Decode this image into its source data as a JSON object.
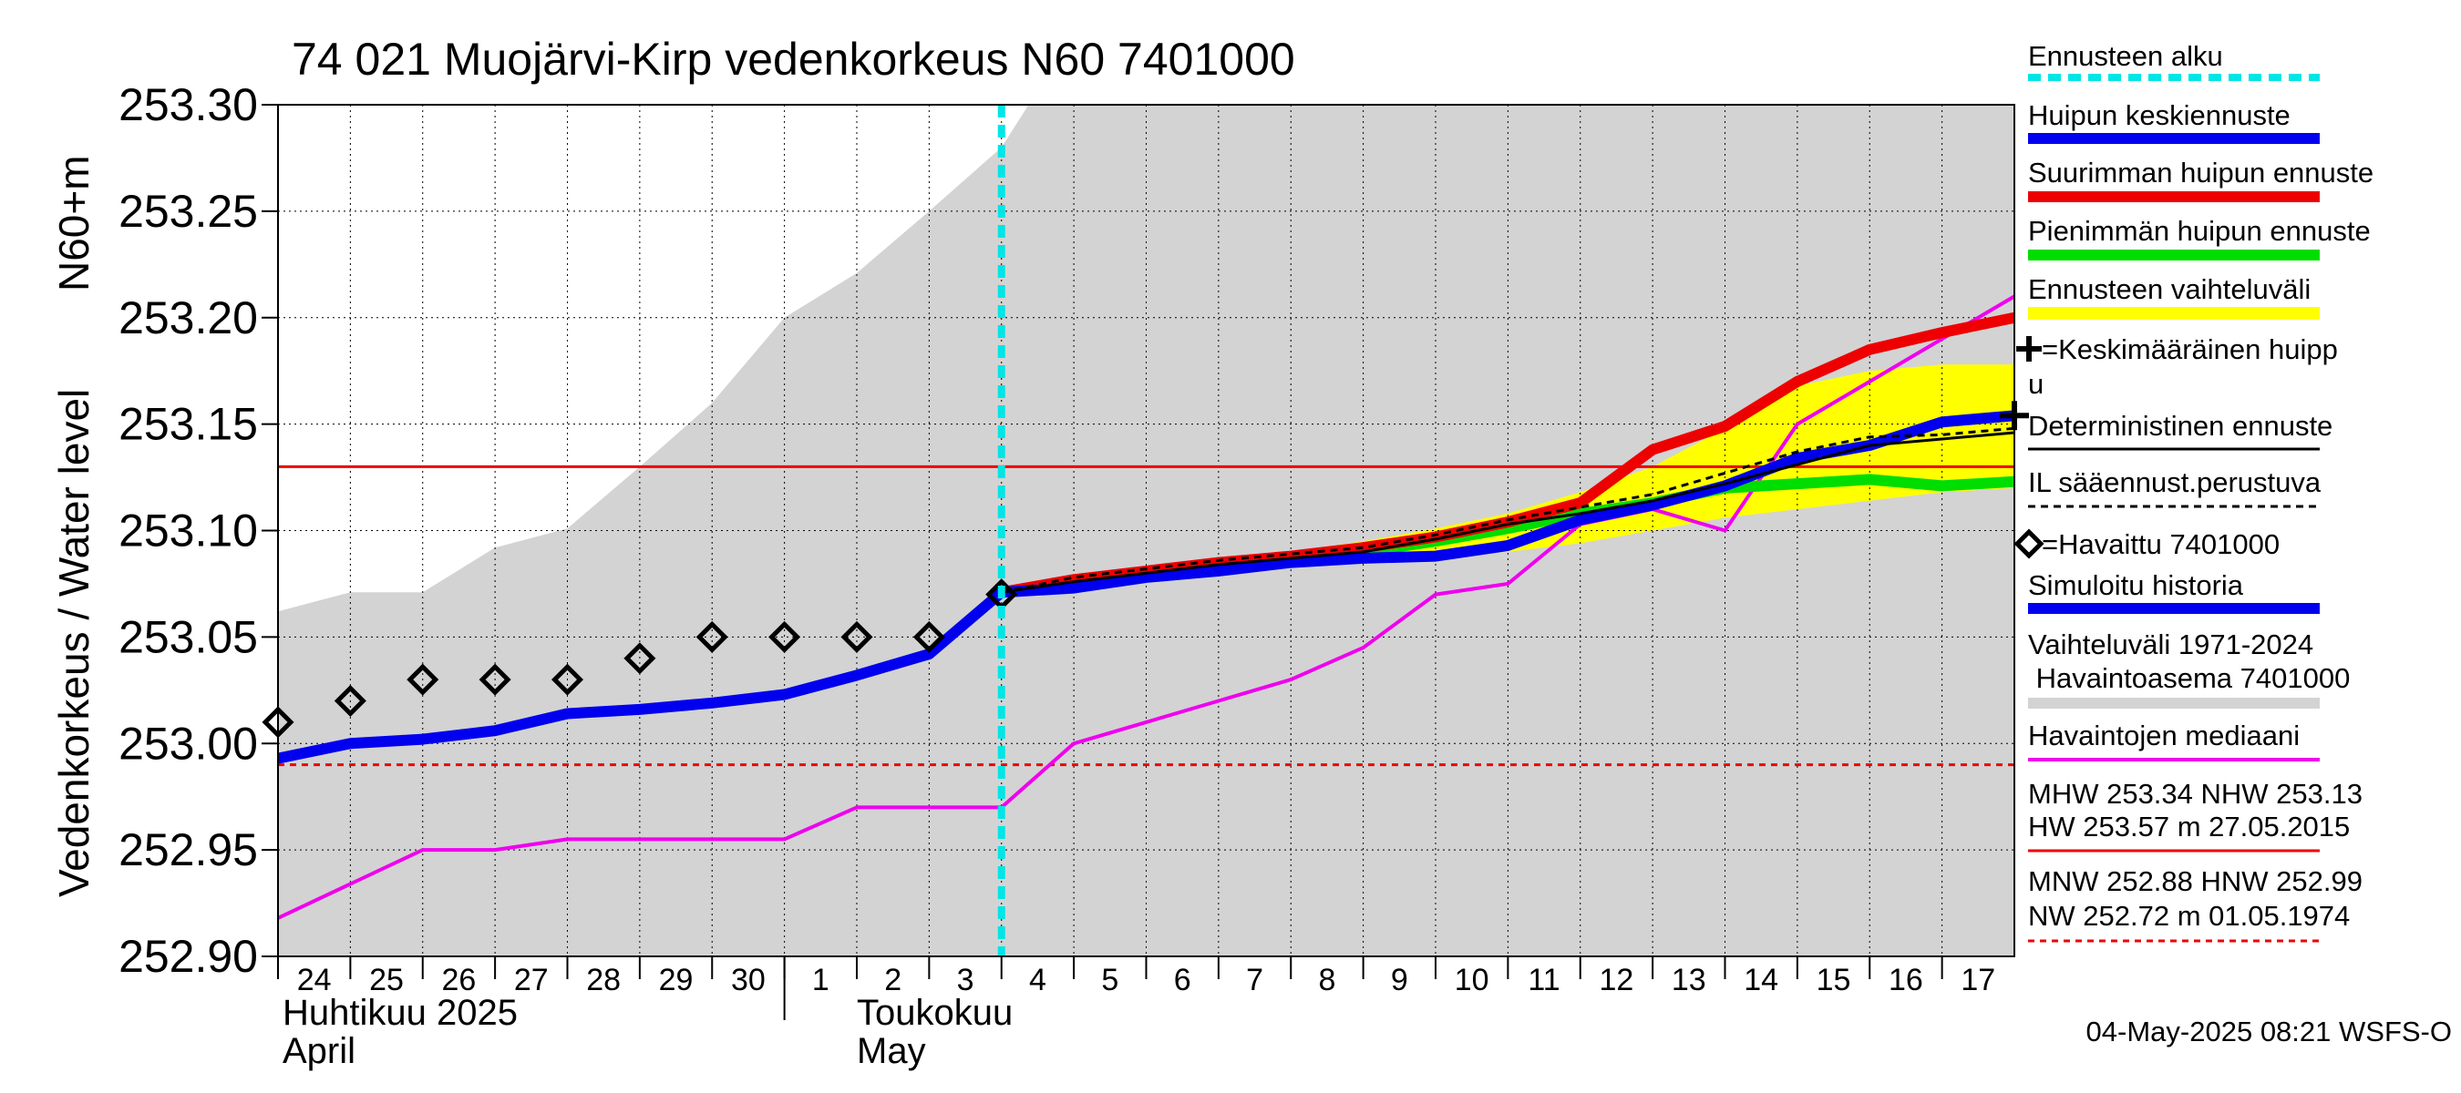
{
  "chart_data": {
    "type": "line",
    "title": "74 021 Muojärvi-Kirp vedenkorkeus N60 7401000",
    "ylabel": "Vedenkorkeus / Water level",
    "yunit": "N60+m",
    "ylim": [
      252.9,
      253.3
    ],
    "yticks": [
      "253.30",
      "253.25",
      "253.20",
      "253.15",
      "253.10",
      "253.05",
      "253.00",
      "252.95",
      "252.90"
    ],
    "x_start": "2025-04-24",
    "x_end": "2025-05-18",
    "x_day_labels": [
      "24",
      "25",
      "26",
      "27",
      "28",
      "29",
      "30",
      "1",
      "2",
      "3",
      "4",
      "5",
      "6",
      "7",
      "8",
      "9",
      "10",
      "11",
      "12",
      "13",
      "14",
      "15",
      "16",
      "17"
    ],
    "month_labels": [
      {
        "line1": "Huhtikuu  2025",
        "line2": "April"
      },
      {
        "line1": "Toukokuu",
        "line2": "May"
      }
    ],
    "forecast_start": "2025-05-04",
    "timestamp": "04-May-2025 08:21 WSFS-O",
    "hist_range_upper": [
      [
        "2025-04-24",
        253.062
      ],
      [
        "2025-04-25",
        253.071
      ],
      [
        "2025-04-26",
        253.071
      ],
      [
        "2025-04-27",
        253.092
      ],
      [
        "2025-04-28",
        253.101
      ],
      [
        "2025-04-29",
        253.13
      ],
      [
        "2025-04-30",
        253.16
      ],
      [
        "2025-05-01",
        253.2
      ],
      [
        "2025-05-02",
        253.221
      ],
      [
        "2025-05-03",
        253.25
      ],
      [
        "2025-05-04",
        253.28
      ],
      [
        "2025-05-04 09:00",
        253.3
      ]
    ],
    "forecast_range_upper": [
      [
        "2025-05-04",
        253.071
      ],
      [
        "2025-05-05",
        253.079
      ],
      [
        "2025-05-06",
        253.082
      ],
      [
        "2025-05-07",
        253.085
      ],
      [
        "2025-05-08",
        253.09
      ],
      [
        "2025-05-09",
        253.095
      ],
      [
        "2025-05-10",
        253.101
      ],
      [
        "2025-05-11",
        253.108
      ],
      [
        "2025-05-12",
        253.118
      ],
      [
        "2025-05-13",
        253.13
      ],
      [
        "2025-05-14",
        253.148
      ],
      [
        "2025-05-15",
        253.168
      ],
      [
        "2025-05-16",
        253.175
      ],
      [
        "2025-05-17",
        253.178
      ],
      [
        "2025-05-18",
        253.178
      ]
    ],
    "forecast_range_lower": [
      [
        "2025-05-04",
        253.071
      ],
      [
        "2025-05-05",
        253.072
      ],
      [
        "2025-05-06",
        253.077
      ],
      [
        "2025-05-07",
        253.081
      ],
      [
        "2025-05-08",
        253.084
      ],
      [
        "2025-05-09",
        253.086
      ],
      [
        "2025-05-10",
        253.088
      ],
      [
        "2025-05-11",
        253.09
      ],
      [
        "2025-05-12",
        253.094
      ],
      [
        "2025-05-13",
        253.1
      ],
      [
        "2025-05-14",
        253.106
      ],
      [
        "2025-05-15",
        253.11
      ],
      [
        "2025-05-16",
        253.114
      ],
      [
        "2025-05-17",
        253.118
      ],
      [
        "2025-05-18",
        253.12
      ]
    ],
    "series": [
      {
        "name": "Simuloitu historia",
        "color": "#0000ee",
        "points": [
          [
            "2025-04-24",
            252.993
          ],
          [
            "2025-04-25",
            253.0
          ],
          [
            "2025-04-26",
            253.002
          ],
          [
            "2025-04-27",
            253.006
          ],
          [
            "2025-04-28",
            253.014
          ],
          [
            "2025-04-29",
            253.016
          ],
          [
            "2025-04-30",
            253.019
          ],
          [
            "2025-05-01",
            253.023
          ],
          [
            "2025-05-02",
            253.032
          ],
          [
            "2025-05-03",
            253.042
          ],
          [
            "2025-05-04",
            253.071
          ]
        ]
      },
      {
        "name": "Havaintojen mediaani",
        "color": "#ee00ee",
        "points": [
          [
            "2025-04-24",
            252.918
          ],
          [
            "2025-04-25",
            252.934
          ],
          [
            "2025-04-26",
            252.95
          ],
          [
            "2025-04-27",
            252.95
          ],
          [
            "2025-04-28",
            252.955
          ],
          [
            "2025-04-29",
            252.955
          ],
          [
            "2025-04-30",
            252.955
          ],
          [
            "2025-05-01",
            252.955
          ],
          [
            "2025-05-02",
            252.97
          ],
          [
            "2025-05-03",
            252.97
          ],
          [
            "2025-05-04",
            252.97
          ],
          [
            "2025-05-05",
            253.0
          ],
          [
            "2025-05-06",
            253.01
          ],
          [
            "2025-05-07",
            253.02
          ],
          [
            "2025-05-08",
            253.03
          ],
          [
            "2025-05-09",
            253.045
          ],
          [
            "2025-05-10",
            253.07
          ],
          [
            "2025-05-11",
            253.075
          ],
          [
            "2025-05-12",
            253.103
          ],
          [
            "2025-05-13",
            253.11
          ],
          [
            "2025-05-14",
            253.1
          ],
          [
            "2025-05-15",
            253.15
          ],
          [
            "2025-05-16",
            253.17
          ],
          [
            "2025-05-17",
            253.19
          ],
          [
            "2025-05-18",
            253.21
          ]
        ]
      },
      {
        "name": "Pienimmän huipun ennuste",
        "color": "#00dd00",
        "points": [
          [
            "2025-05-04",
            253.071
          ],
          [
            "2025-05-05",
            253.075
          ],
          [
            "2025-05-06",
            253.079
          ],
          [
            "2025-05-07",
            253.082
          ],
          [
            "2025-05-08",
            253.086
          ],
          [
            "2025-05-09",
            253.09
          ],
          [
            "2025-05-10",
            253.095
          ],
          [
            "2025-05-11",
            253.101
          ],
          [
            "2025-05-12",
            253.108
          ],
          [
            "2025-05-13",
            253.113
          ],
          [
            "2025-05-14",
            253.12
          ],
          [
            "2025-05-15",
            253.122
          ],
          [
            "2025-05-16",
            253.124
          ],
          [
            "2025-05-17",
            253.121
          ],
          [
            "2025-05-18",
            253.123
          ]
        ]
      },
      {
        "name": "Suurimman huipun ennuste",
        "color": "#ee0000",
        "points": [
          [
            "2025-05-04",
            253.071
          ],
          [
            "2025-05-05",
            253.077
          ],
          [
            "2025-05-06",
            253.081
          ],
          [
            "2025-05-07",
            253.085
          ],
          [
            "2025-05-08",
            253.088
          ],
          [
            "2025-05-09",
            253.092
          ],
          [
            "2025-05-10",
            253.097
          ],
          [
            "2025-05-11",
            253.104
          ],
          [
            "2025-05-12",
            253.113
          ],
          [
            "2025-05-13",
            253.138
          ],
          [
            "2025-05-14",
            253.149
          ],
          [
            "2025-05-15",
            253.17
          ],
          [
            "2025-05-16",
            253.185
          ],
          [
            "2025-05-17",
            253.193
          ],
          [
            "2025-05-18",
            253.2
          ]
        ]
      },
      {
        "name": "Huipun keskiennuste",
        "color": "#0000ee",
        "points": [
          [
            "2025-05-04",
            253.071
          ],
          [
            "2025-05-05",
            253.073
          ],
          [
            "2025-05-06",
            253.078
          ],
          [
            "2025-05-07",
            253.081
          ],
          [
            "2025-05-08",
            253.085
          ],
          [
            "2025-05-09",
            253.087
          ],
          [
            "2025-05-10",
            253.088
          ],
          [
            "2025-05-11",
            253.093
          ],
          [
            "2025-05-12",
            253.105
          ],
          [
            "2025-05-13",
            253.112
          ],
          [
            "2025-05-14",
            253.121
          ],
          [
            "2025-05-15",
            253.134
          ],
          [
            "2025-05-16",
            253.14
          ],
          [
            "2025-05-17",
            253.151
          ],
          [
            "2025-05-18",
            253.154
          ]
        ]
      },
      {
        "name": "Deterministinen ennuste",
        "color": "#000000",
        "points": [
          [
            "2025-05-04",
            253.071
          ],
          [
            "2025-05-05",
            253.076
          ],
          [
            "2025-05-06",
            253.08
          ],
          [
            "2025-05-07",
            253.084
          ],
          [
            "2025-05-08",
            253.087
          ],
          [
            "2025-05-09",
            253.09
          ],
          [
            "2025-05-10",
            253.096
          ],
          [
            "2025-05-11",
            253.103
          ],
          [
            "2025-05-12",
            253.108
          ],
          [
            "2025-05-13",
            253.114
          ],
          [
            "2025-05-14",
            253.122
          ],
          [
            "2025-05-15",
            253.131
          ],
          [
            "2025-05-16",
            253.14
          ],
          [
            "2025-05-17",
            253.143
          ],
          [
            "2025-05-18",
            253.146
          ]
        ]
      },
      {
        "name": "IL sääennust.perustuva",
        "color": "#000000",
        "points": [
          [
            "2025-05-04",
            253.071
          ],
          [
            "2025-05-05",
            253.078
          ],
          [
            "2025-05-06",
            253.082
          ],
          [
            "2025-05-07",
            253.086
          ],
          [
            "2025-05-08",
            253.089
          ],
          [
            "2025-05-09",
            253.092
          ],
          [
            "2025-05-10",
            253.098
          ],
          [
            "2025-05-11",
            253.105
          ],
          [
            "2025-05-12",
            253.111
          ],
          [
            "2025-05-13",
            253.117
          ],
          [
            "2025-05-14",
            253.127
          ],
          [
            "2025-05-15",
            253.137
          ],
          [
            "2025-05-16",
            253.144
          ],
          [
            "2025-05-17",
            253.145
          ],
          [
            "2025-05-18",
            253.148
          ]
        ]
      }
    ],
    "observed": [
      [
        "2025-04-24",
        253.01
      ],
      [
        "2025-04-25",
        253.02
      ],
      [
        "2025-04-26",
        253.03
      ],
      [
        "2025-04-27",
        253.03
      ],
      [
        "2025-04-28",
        253.03
      ],
      [
        "2025-04-29",
        253.04
      ],
      [
        "2025-04-30",
        253.05
      ],
      [
        "2025-05-01",
        253.05
      ],
      [
        "2025-05-02",
        253.05
      ],
      [
        "2025-05-03",
        253.05
      ],
      [
        "2025-05-04",
        253.07
      ]
    ],
    "mean_peak": [
      "2025-05-18",
      253.154
    ],
    "reference_lines": {
      "NHW": 253.13,
      "HNW": 252.99
    },
    "legend": {
      "forecast_start": "Ennusteen alku",
      "mean_forecast": "Huipun keskiennuste",
      "max_forecast": "Suurimman huipun ennuste",
      "min_forecast": "Pienimmän huipun ennuste",
      "range": "Ennusteen vaihteluväli",
      "mean_peak_l1": "=Keskimääräinen huipp",
      "mean_peak_l2": "u",
      "deterministic": "Deterministinen ennuste",
      "il_based": "IL sääennust.perustuva",
      "observed": "=Havaittu 7401000",
      "simulated": "Simuloitu historia",
      "hist_range_l1": "Vaihteluväli 1971-2024",
      "hist_range_l2": " Havaintoasema 7401000",
      "median": "Havaintojen mediaani",
      "high_l1": "MHW 253.34 NHW 253.13",
      "high_l2": "HW 253.57 m 27.05.2015",
      "low_l1": "MNW 252.88 HNW 252.99",
      "low_l2": "NW 252.72 m 01.05.1974"
    },
    "colors": {
      "forecast_start": "#00e5e5",
      "mean_forecast": "#0000ee",
      "max_forecast": "#ee0000",
      "min_forecast": "#00dd00",
      "range": "#ffff00",
      "hist_range": "#d3d3d3",
      "median": "#ee00ee",
      "reference": "#ee0000"
    }
  }
}
